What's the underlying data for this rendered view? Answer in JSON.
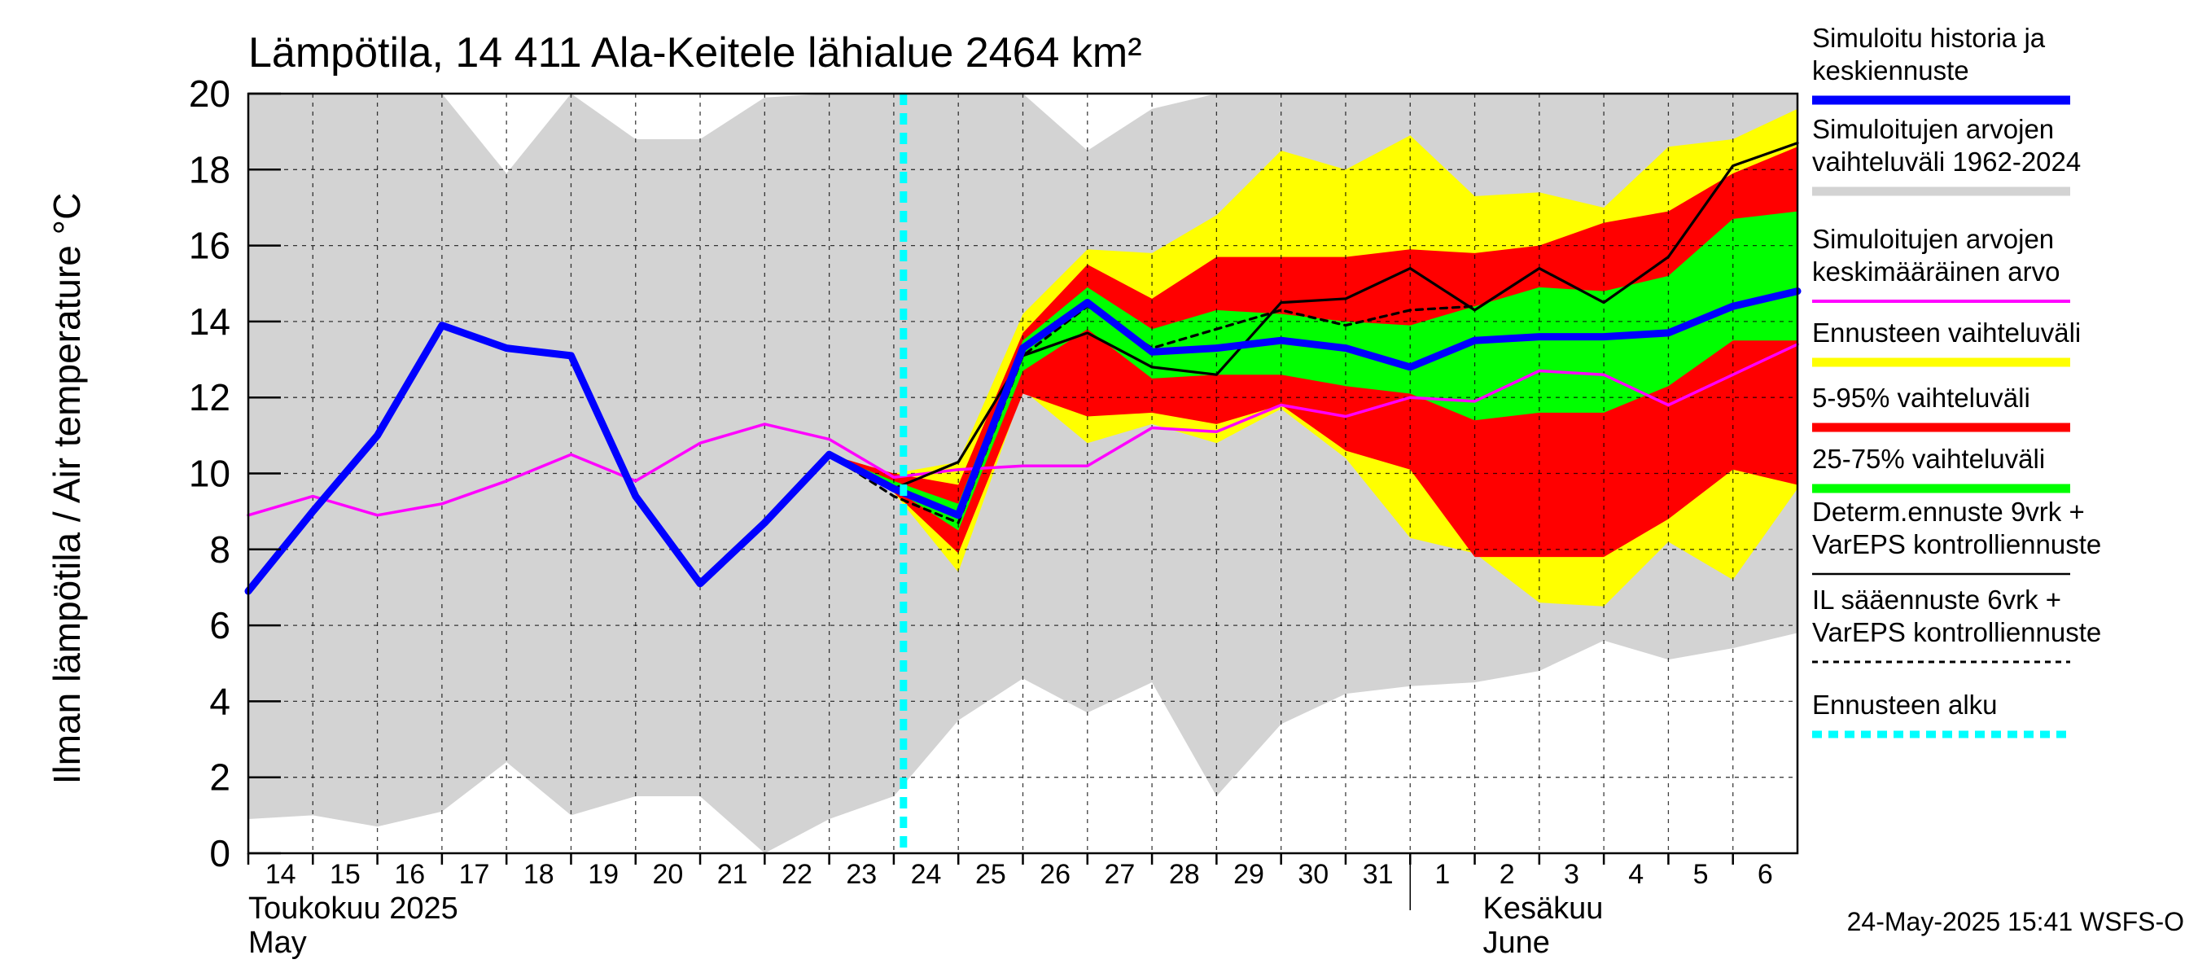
{
  "chart_data": {
    "type": "area",
    "title": "Lämpötila, 14 411 Ala-Keitele lähialue 2464 km²",
    "ylabel": "Ilman lämpötila / Air temperature   °C",
    "ylim": [
      0,
      20
    ],
    "yticks": [
      "0",
      "2",
      "4",
      "6",
      "8",
      "10",
      "12",
      "14",
      "16",
      "18",
      "20"
    ],
    "grid": true,
    "x": [
      "2025-05-14",
      "2025-05-15",
      "2025-05-16",
      "2025-05-17",
      "2025-05-18",
      "2025-05-19",
      "2025-05-20",
      "2025-05-21",
      "2025-05-22",
      "2025-05-23",
      "2025-05-24",
      "2025-05-25",
      "2025-05-26",
      "2025-05-27",
      "2025-05-28",
      "2025-05-29",
      "2025-05-30",
      "2025-05-31",
      "2025-06-01",
      "2025-06-02",
      "2025-06-03",
      "2025-06-04",
      "2025-06-05",
      "2025-06-06",
      "2025-06-07"
    ],
    "xtick_labels": [
      "14",
      "15",
      "16",
      "17",
      "18",
      "19",
      "20",
      "21",
      "22",
      "23",
      "24",
      "25",
      "26",
      "27",
      "28",
      "29",
      "30",
      "31",
      "1",
      "2",
      "3",
      "4",
      "5",
      "6"
    ],
    "month_labels": [
      {
        "date": "2025-05-14",
        "line1": "Toukokuu  2025",
        "line2": "May"
      },
      {
        "date": "2025-06-02",
        "line1": "Kesäkuu",
        "line2": "June"
      }
    ],
    "forecast_start": "2025-05-24",
    "series": [
      {
        "key": "hist_range",
        "name": "Simuloitujen arvojen vaihteluväli 1962-2024",
        "color": "#d3d3d3",
        "upper": [
          20,
          20,
          20,
          20,
          17.9,
          20,
          18.8,
          18.8,
          19.9,
          20,
          20,
          20,
          20,
          18.5,
          19.6,
          20,
          20,
          20,
          20,
          20,
          20,
          20,
          20,
          20,
          20
        ],
        "lower": [
          0.9,
          1.0,
          0.7,
          1.1,
          2.4,
          1.0,
          1.5,
          1.5,
          0,
          0.9,
          1.5,
          3.5,
          4.6,
          3.7,
          4.5,
          1.5,
          3.4,
          4.2,
          4.4,
          4.5,
          4.8,
          5.6,
          5.1,
          5.4,
          5.8
        ]
      },
      {
        "key": "ens_range",
        "name": "Ennusteen vaihteluväli",
        "color": "#ffff00",
        "upper": [
          null,
          null,
          null,
          null,
          null,
          null,
          null,
          null,
          null,
          10.5,
          10.0,
          10.3,
          14.2,
          15.9,
          15.8,
          16.8,
          18.5,
          18.0,
          18.9,
          17.3,
          17.4,
          17.0,
          18.6,
          18.8,
          19.6
        ],
        "lower": [
          null,
          null,
          null,
          null,
          null,
          null,
          null,
          null,
          null,
          10.5,
          9.5,
          7.4,
          12.2,
          10.8,
          11.3,
          10.8,
          11.7,
          10.4,
          8.3,
          7.9,
          6.6,
          6.5,
          8.2,
          7.2,
          9.6
        ]
      },
      {
        "key": "p5_95",
        "name": "5-95% vaihteluväli",
        "color": "#ff0000",
        "upper": [
          null,
          null,
          null,
          null,
          null,
          null,
          null,
          null,
          null,
          10.5,
          10.0,
          9.7,
          13.7,
          15.5,
          14.6,
          15.7,
          15.7,
          15.7,
          15.9,
          15.8,
          16.0,
          16.6,
          16.9,
          17.9,
          18.6
        ],
        "lower": [
          null,
          null,
          null,
          null,
          null,
          null,
          null,
          null,
          null,
          10.5,
          9.5,
          7.9,
          12.1,
          11.5,
          11.6,
          11.3,
          11.8,
          10.6,
          10.1,
          7.8,
          7.8,
          7.8,
          8.8,
          10.1,
          9.7
        ]
      },
      {
        "key": "p25_75",
        "name": "25-75% vaihteluväli",
        "color": "#00ff00",
        "upper": [
          null,
          null,
          null,
          null,
          null,
          null,
          null,
          null,
          null,
          10.5,
          9.8,
          9.2,
          13.5,
          14.9,
          13.8,
          14.3,
          14.2,
          14.0,
          13.9,
          14.4,
          14.9,
          14.8,
          15.2,
          16.7,
          16.9
        ],
        "lower": [
          null,
          null,
          null,
          null,
          null,
          null,
          null,
          null,
          null,
          10.5,
          9.6,
          8.5,
          12.7,
          13.8,
          12.5,
          12.6,
          12.6,
          12.3,
          12.1,
          11.4,
          11.6,
          11.6,
          12.3,
          13.5,
          13.5
        ]
      },
      {
        "key": "mean",
        "name": "Simuloitujen arvojen keskimääräinen arvo",
        "color": "#ff00ff",
        "values": [
          8.9,
          9.4,
          8.9,
          9.2,
          9.8,
          10.5,
          9.8,
          10.8,
          11.3,
          10.9,
          9.9,
          10.1,
          10.2,
          10.2,
          11.2,
          11.1,
          11.8,
          11.5,
          12.0,
          11.9,
          12.7,
          12.6,
          11.8,
          12.6,
          13.4
        ]
      },
      {
        "key": "determ",
        "name": "Determ.ennuste 9vrk + VarEPS kontrolliennuste",
        "color": "#000000",
        "values": [
          null,
          null,
          null,
          null,
          null,
          null,
          null,
          null,
          null,
          10.5,
          9.6,
          10.3,
          13.1,
          13.7,
          12.8,
          12.6,
          14.5,
          14.6,
          15.4,
          14.3,
          15.4,
          14.5,
          15.7,
          18.1,
          18.7
        ]
      },
      {
        "key": "il",
        "name": "IL sääennuste 6vrk + VarEPS kontrolliennuste",
        "color": "#000000",
        "values": [
          null,
          null,
          null,
          null,
          null,
          null,
          null,
          null,
          null,
          10.5,
          9.4,
          8.7,
          13.1,
          14.4,
          13.3,
          13.8,
          14.3,
          13.9,
          14.3,
          14.4,
          null,
          null,
          null,
          null,
          null
        ]
      },
      {
        "key": "sim",
        "name": "Simuloitu historia ja keskiennuste",
        "color": "#0000ff",
        "values": [
          6.9,
          9.0,
          11.0,
          13.9,
          13.3,
          13.1,
          9.4,
          7.1,
          8.7,
          10.5,
          9.6,
          8.9,
          13.3,
          14.5,
          13.2,
          13.3,
          13.5,
          13.3,
          12.8,
          13.5,
          13.6,
          13.6,
          13.7,
          14.4,
          14.8
        ]
      }
    ],
    "legend": {
      "placement": "right",
      "items": [
        {
          "lines": [
            "Simuloitu historia ja",
            "keskiennuste"
          ],
          "color": "#0000ff",
          "style": "thick"
        },
        {
          "lines": [
            "Simuloitujen arvojen",
            "vaihteluväli 1962-2024"
          ],
          "color": "#d3d3d3",
          "style": "thick"
        },
        {
          "lines": [
            "Simuloitujen arvojen",
            "keskimääräinen arvo"
          ],
          "color": "#ff00ff",
          "style": "medium"
        },
        {
          "lines": [
            "Ennusteen vaihteluväli"
          ],
          "color": "#ffff00",
          "style": "thick"
        },
        {
          "lines": [
            "5-95% vaihteluväli"
          ],
          "color": "#ff0000",
          "style": "thick"
        },
        {
          "lines": [
            "25-75% vaihteluväli"
          ],
          "color": "#00ff00",
          "style": "thick"
        },
        {
          "lines": [
            "Determ.ennuste 9vrk +",
            "VarEPS kontrolliennuste"
          ],
          "color": "#000000",
          "style": "thin"
        },
        {
          "lines": [
            "IL sääennuste 6vrk  +",
            "  VarEPS kontrolliennuste"
          ],
          "color": "#000000",
          "style": "dashed"
        },
        {
          "lines": [
            "Ennusteen alku"
          ],
          "color": "#00ffff",
          "style": "dotted"
        }
      ]
    },
    "timestamp": "24-May-2025 15:41 WSFS-O"
  }
}
